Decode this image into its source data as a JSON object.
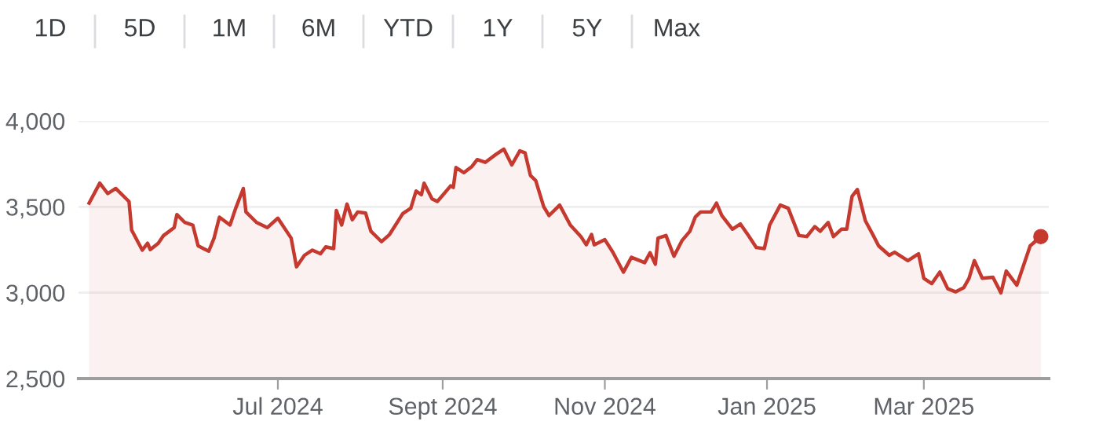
{
  "chart_data": {
    "type": "area",
    "annotations": [
      "1D",
      "5D",
      "1M",
      "6M",
      "YTD",
      "1Y",
      "5Y",
      "Max"
    ],
    "xlim": [
      "2024-04-17",
      "2025-04-17"
    ],
    "xticks": [
      {
        "value": "2024-07-01",
        "label": "Jul 2024"
      },
      {
        "value": "2024-09-01",
        "label": "Sept 2024"
      },
      {
        "value": "2024-11-01",
        "label": "Nov 2024"
      },
      {
        "value": "2025-01-01",
        "label": "Jan 2025"
      },
      {
        "value": "2025-03-01",
        "label": "Mar 2025"
      }
    ],
    "ylim": [
      2500,
      4000
    ],
    "yticks": [
      {
        "value": 2500,
        "label": "2,500"
      },
      {
        "value": 3000,
        "label": "3,000"
      },
      {
        "value": 3500,
        "label": "3,500"
      },
      {
        "value": 4000,
        "label": "4,000"
      }
    ],
    "grid": "y",
    "series": [
      {
        "color": "#c5392f",
        "x": [
          "2024-04-21",
          "2024-04-25",
          "2024-04-28",
          "2024-05-01",
          "2024-05-05",
          "2024-05-06",
          "2024-05-07",
          "2024-05-11",
          "2024-05-13",
          "2024-05-14",
          "2024-05-17",
          "2024-05-19",
          "2024-05-23",
          "2024-05-24",
          "2024-05-27",
          "2024-05-30",
          "2024-06-01",
          "2024-06-03",
          "2024-06-05",
          "2024-06-07",
          "2024-06-09",
          "2024-06-13",
          "2024-06-15",
          "2024-06-18",
          "2024-06-19",
          "2024-06-23",
          "2024-06-27",
          "2024-07-01",
          "2024-07-06",
          "2024-07-08",
          "2024-07-11",
          "2024-07-14",
          "2024-07-17",
          "2024-07-19",
          "2024-07-22",
          "2024-07-23",
          "2024-07-25",
          "2024-07-27",
          "2024-07-29",
          "2024-07-31",
          "2024-08-03",
          "2024-08-05",
          "2024-08-09",
          "2024-08-12",
          "2024-08-17",
          "2024-08-20",
          "2024-08-22",
          "2024-08-24",
          "2024-08-25",
          "2024-08-28",
          "2024-08-30",
          "2024-09-04",
          "2024-09-05",
          "2024-09-06",
          "2024-09-09",
          "2024-09-12",
          "2024-09-14",
          "2024-09-17",
          "2024-09-21",
          "2024-09-24",
          "2024-09-27",
          "2024-09-30",
          "2024-10-02",
          "2024-10-04",
          "2024-10-06",
          "2024-10-09",
          "2024-10-11",
          "2024-10-15",
          "2024-10-19",
          "2024-10-23",
          "2024-10-25",
          "2024-10-27",
          "2024-10-28",
          "2024-11-01",
          "2024-11-04",
          "2024-11-08",
          "2024-11-11",
          "2024-11-16",
          "2024-11-18",
          "2024-11-20",
          "2024-11-21",
          "2024-11-24",
          "2024-11-27",
          "2024-11-30",
          "2024-12-03",
          "2024-12-05",
          "2024-12-07",
          "2024-12-11",
          "2024-12-13",
          "2024-12-15",
          "2024-12-17",
          "2024-12-19",
          "2024-12-22",
          "2024-12-25",
          "2024-12-28",
          "2024-12-31",
          "2025-01-02",
          "2025-01-06",
          "2025-01-09",
          "2025-01-13",
          "2025-01-16",
          "2025-01-19",
          "2025-01-21",
          "2025-01-24",
          "2025-01-26",
          "2025-01-29",
          "2025-01-31",
          "2025-02-02",
          "2025-02-04",
          "2025-02-07",
          "2025-02-10",
          "2025-02-12",
          "2025-02-16",
          "2025-02-18",
          "2025-02-23",
          "2025-02-27",
          "2025-03-01",
          "2025-03-04",
          "2025-03-07",
          "2025-03-10",
          "2025-03-13",
          "2025-03-16",
          "2025-03-18",
          "2025-03-20",
          "2025-03-23",
          "2025-03-27",
          "2025-03-30",
          "2025-04-01",
          "2025-04-05",
          "2025-04-10",
          "2025-04-14"
        ],
        "values": [
          3522,
          3638,
          3577,
          3607,
          3546,
          3531,
          3364,
          3248,
          3288,
          3251,
          3288,
          3333,
          3379,
          3455,
          3409,
          3394,
          3273,
          3257,
          3242,
          3318,
          3440,
          3394,
          3486,
          3607,
          3470,
          3409,
          3379,
          3434,
          3318,
          3151,
          3218,
          3248,
          3227,
          3267,
          3257,
          3479,
          3394,
          3516,
          3425,
          3470,
          3464,
          3358,
          3297,
          3339,
          3461,
          3492,
          3592,
          3571,
          3638,
          3546,
          3531,
          3622,
          3613,
          3729,
          3699,
          3735,
          3775,
          3759,
          3805,
          3836,
          3744,
          3826,
          3814,
          3683,
          3653,
          3501,
          3449,
          3510,
          3394,
          3327,
          3279,
          3339,
          3279,
          3309,
          3236,
          3120,
          3206,
          3175,
          3233,
          3166,
          3318,
          3333,
          3212,
          3303,
          3358,
          3440,
          3470,
          3470,
          3522,
          3449,
          3409,
          3370,
          3400,
          3333,
          3263,
          3257,
          3394,
          3510,
          3492,
          3333,
          3327,
          3385,
          3358,
          3409,
          3327,
          3370,
          3370,
          3562,
          3601,
          3419,
          3333,
          3273,
          3218,
          3236,
          3187,
          3227,
          3084,
          3053,
          3120,
          3023,
          3005,
          3029,
          3084,
          3187,
          3084,
          3090,
          2999,
          3126,
          3044,
          3273,
          3327
        ]
      },
      {
        "type": "scatter",
        "color": "#c5392f",
        "x": [
          "2025-04-14"
        ],
        "values": [
          3327
        ]
      }
    ]
  }
}
